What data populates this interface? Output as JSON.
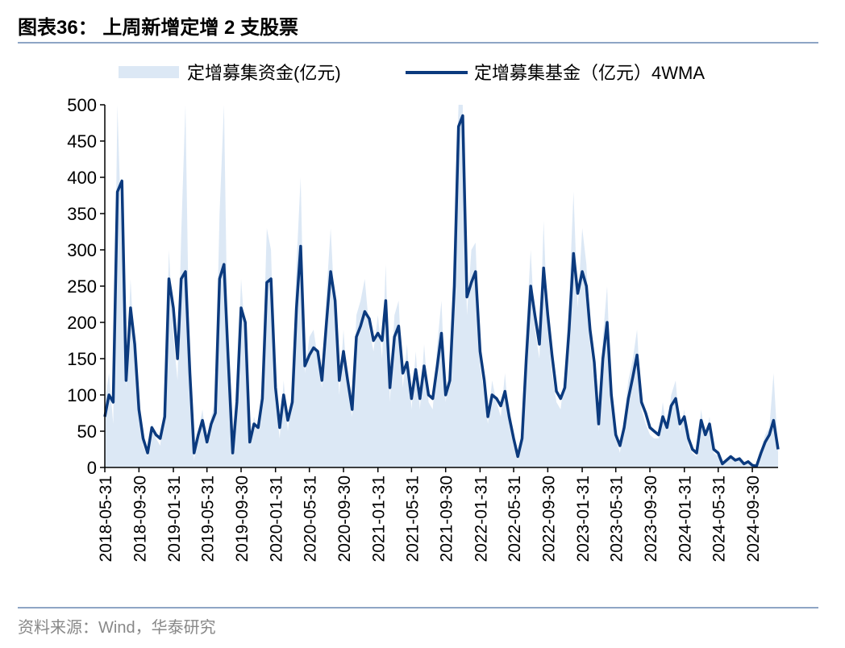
{
  "chart_data": {
    "type": "area-line",
    "title": "图表36：  上周新增定增 2 支股票",
    "source": "资料来源：Wind，华泰研究",
    "x": [
      "2018-05-31",
      "2018-06-15",
      "2018-06-30",
      "2018-07-15",
      "2018-07-31",
      "2018-08-15",
      "2018-08-31",
      "2018-09-15",
      "2018-09-30",
      "2018-10-15",
      "2018-10-31",
      "2018-11-15",
      "2018-11-30",
      "2018-12-15",
      "2018-12-31",
      "2019-01-15",
      "2019-01-31",
      "2019-02-15",
      "2019-02-28",
      "2019-03-15",
      "2019-03-31",
      "2019-04-15",
      "2019-04-30",
      "2019-05-15",
      "2019-05-31",
      "2019-06-15",
      "2019-06-30",
      "2019-07-15",
      "2019-07-31",
      "2019-08-15",
      "2019-08-31",
      "2019-09-15",
      "2019-09-30",
      "2019-10-15",
      "2019-10-31",
      "2019-11-15",
      "2019-11-30",
      "2019-12-15",
      "2019-12-31",
      "2020-01-15",
      "2020-01-31",
      "2020-02-15",
      "2020-02-29",
      "2020-03-15",
      "2020-03-31",
      "2020-04-15",
      "2020-04-30",
      "2020-05-15",
      "2020-05-31",
      "2020-06-15",
      "2020-06-30",
      "2020-07-15",
      "2020-07-31",
      "2020-08-15",
      "2020-08-31",
      "2020-09-15",
      "2020-09-30",
      "2020-10-15",
      "2020-10-31",
      "2020-11-15",
      "2020-11-30",
      "2020-12-15",
      "2020-12-31",
      "2021-01-15",
      "2021-01-31",
      "2021-02-15",
      "2021-02-28",
      "2021-03-15",
      "2021-03-31",
      "2021-04-15",
      "2021-04-30",
      "2021-05-15",
      "2021-05-31",
      "2021-06-15",
      "2021-06-30",
      "2021-07-15",
      "2021-07-31",
      "2021-08-15",
      "2021-08-31",
      "2021-09-15",
      "2021-09-30",
      "2021-10-15",
      "2021-10-31",
      "2021-11-15",
      "2021-11-30",
      "2021-12-15",
      "2021-12-31",
      "2022-01-15",
      "2022-01-31",
      "2022-02-15",
      "2022-02-28",
      "2022-03-15",
      "2022-03-31",
      "2022-04-15",
      "2022-04-30",
      "2022-05-15",
      "2022-05-31",
      "2022-06-15",
      "2022-06-30",
      "2022-07-15",
      "2022-07-31",
      "2022-08-15",
      "2022-08-31",
      "2022-09-15",
      "2022-09-30",
      "2022-10-15",
      "2022-10-31",
      "2022-11-15",
      "2022-11-30",
      "2022-12-15",
      "2022-12-31",
      "2023-01-15",
      "2023-01-31",
      "2023-02-15",
      "2023-02-28",
      "2023-03-15",
      "2023-03-31",
      "2023-04-15",
      "2023-04-30",
      "2023-05-15",
      "2023-05-31",
      "2023-06-15",
      "2023-06-30",
      "2023-07-15",
      "2023-07-31",
      "2023-08-15",
      "2023-08-31",
      "2023-09-15",
      "2023-09-30",
      "2023-10-15",
      "2023-10-31",
      "2023-11-15",
      "2023-11-30",
      "2023-12-15",
      "2023-12-31",
      "2024-01-15",
      "2024-01-31",
      "2024-02-15",
      "2024-02-29",
      "2024-03-15",
      "2024-03-31",
      "2024-04-15",
      "2024-04-30",
      "2024-05-15",
      "2024-05-31",
      "2024-06-15",
      "2024-06-30",
      "2024-07-15",
      "2024-07-31",
      "2024-08-15",
      "2024-08-31",
      "2024-09-15",
      "2024-09-30",
      "2024-10-15",
      "2024-10-31",
      "2024-11-15",
      "2024-11-30",
      "2024-12-15",
      "2024-12-31"
    ],
    "series": [
      {
        "name": "定增募集资金(亿元)",
        "kind": "area",
        "color": "#dce8f5",
        "values": [
          90,
          130,
          60,
          500,
          300,
          110,
          260,
          150,
          70,
          30,
          15,
          60,
          40,
          30,
          90,
          300,
          180,
          120,
          320,
          500,
          100,
          10,
          50,
          80,
          30,
          70,
          90,
          350,
          500,
          120,
          15,
          110,
          260,
          180,
          30,
          70,
          50,
          120,
          330,
          300,
          90,
          40,
          120,
          50,
          110,
          280,
          400,
          130,
          180,
          190,
          150,
          110,
          240,
          330,
          210,
          100,
          190,
          110,
          70,
          210,
          230,
          260,
          190,
          160,
          210,
          150,
          280,
          90,
          210,
          230,
          110,
          170,
          80,
          160,
          80,
          170,
          90,
          80,
          170,
          230,
          90,
          140,
          320,
          500,
          500,
          210,
          300,
          310,
          140,
          100,
          60,
          120,
          90,
          70,
          130,
          60,
          30,
          10,
          50,
          190,
          300,
          190,
          150,
          340,
          190,
          130,
          90,
          80,
          130,
          230,
          380,
          220,
          330,
          280,
          170,
          120,
          50,
          180,
          250,
          90,
          40,
          20,
          70,
          120,
          150,
          190,
          80,
          60,
          45,
          40,
          40,
          90,
          50,
          100,
          120,
          50,
          80,
          30,
          20,
          15,
          80,
          40,
          70,
          20,
          15,
          3,
          12,
          18,
          8,
          15,
          4,
          10,
          2,
          1,
          25,
          45,
          55,
          130,
          20
        ]
      },
      {
        "name": "定增募集基金（亿元）4WMA",
        "kind": "line",
        "color": "#0b3a7e",
        "values": [
          70,
          100,
          90,
          380,
          395,
          120,
          220,
          170,
          80,
          40,
          20,
          55,
          45,
          40,
          70,
          260,
          220,
          150,
          260,
          270,
          130,
          20,
          45,
          65,
          35,
          60,
          75,
          260,
          280,
          150,
          20,
          90,
          220,
          200,
          35,
          60,
          55,
          95,
          255,
          260,
          110,
          55,
          100,
          65,
          90,
          220,
          305,
          140,
          155,
          165,
          160,
          120,
          200,
          270,
          230,
          120,
          160,
          120,
          80,
          180,
          195,
          215,
          205,
          175,
          185,
          175,
          230,
          110,
          180,
          195,
          130,
          145,
          95,
          135,
          95,
          140,
          100,
          95,
          140,
          185,
          100,
          120,
          250,
          470,
          485,
          235,
          255,
          270,
          160,
          120,
          70,
          100,
          95,
          85,
          105,
          70,
          40,
          15,
          40,
          150,
          250,
          210,
          170,
          275,
          210,
          155,
          105,
          95,
          110,
          190,
          295,
          240,
          270,
          250,
          190,
          145,
          60,
          150,
          200,
          100,
          45,
          30,
          55,
          95,
          125,
          155,
          90,
          75,
          55,
          50,
          45,
          70,
          55,
          85,
          95,
          60,
          70,
          40,
          25,
          20,
          65,
          45,
          60,
          25,
          20,
          5,
          10,
          15,
          10,
          12,
          5,
          8,
          3,
          2,
          20,
          35,
          45,
          65,
          25
        ]
      }
    ],
    "xlim": [
      "2018-05-31",
      "2024-12-31"
    ],
    "xticks": [
      "2018-05-31",
      "2018-09-30",
      "2019-01-31",
      "2019-05-31",
      "2019-09-30",
      "2020-01-31",
      "2020-05-31",
      "2020-09-30",
      "2021-01-31",
      "2021-05-31",
      "2021-09-30",
      "2022-01-31",
      "2022-05-31",
      "2022-09-30",
      "2023-01-31",
      "2023-05-31",
      "2023-09-30",
      "2024-01-31",
      "2024-05-31",
      "2024-09-30"
    ],
    "ylim": [
      0,
      500
    ],
    "yticks": [
      0,
      50,
      100,
      150,
      200,
      250,
      300,
      350,
      400,
      450,
      500
    ]
  }
}
